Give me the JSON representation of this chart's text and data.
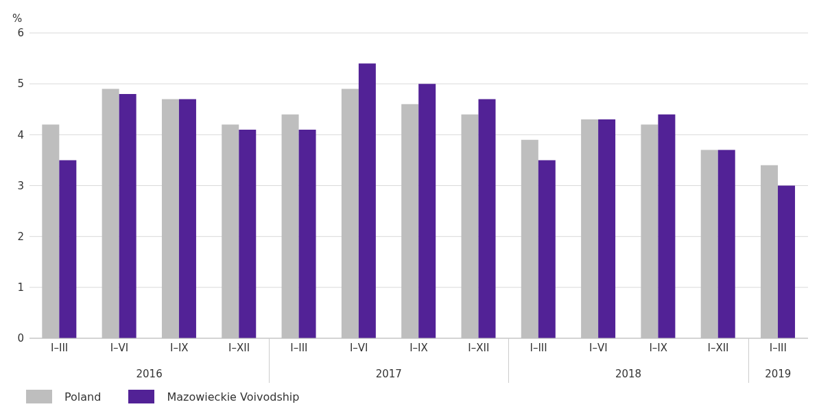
{
  "chart_data": {
    "type": "bar",
    "ylabel": "%",
    "categories": [
      "I–III",
      "I–VI",
      "I–IX",
      "I–XII",
      "I–III",
      "I–VI",
      "I–IX",
      "I–XII",
      "I–III",
      "I–VI",
      "I–IX",
      "I–XII",
      "I–III"
    ],
    "series": [
      {
        "name": "Poland",
        "color": "#bebebe",
        "values": [
          4.2,
          4.9,
          4.7,
          4.2,
          4.4,
          4.9,
          4.6,
          4.4,
          3.9,
          4.3,
          4.2,
          3.7,
          3.4
        ]
      },
      {
        "name": "Mazowieckie Voivodship",
        "color": "#522296",
        "values": [
          3.5,
          4.8,
          4.7,
          4.1,
          4.1,
          5.4,
          5.0,
          4.7,
          3.5,
          4.3,
          4.4,
          3.7,
          3.0
        ]
      }
    ],
    "annotations": [
      "2016",
      "2017",
      "2018",
      "2019"
    ],
    "ylim": [
      0,
      6
    ],
    "yticks": [
      0,
      1,
      2,
      3,
      4,
      5,
      6
    ],
    "grid": "y",
    "legend": "bottom left"
  }
}
